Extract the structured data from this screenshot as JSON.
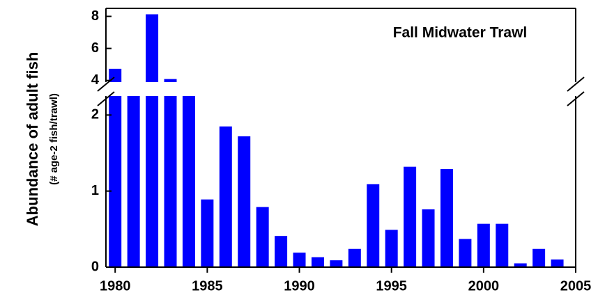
{
  "chart_data": {
    "type": "bar",
    "annotation": "Fall Midwater Trawl",
    "y_label": "Abundance of adult fish",
    "y_sublabel": "(# age-2 fish/trawl)",
    "color": "#0000ff",
    "x": [
      1980,
      1981,
      1982,
      1983,
      1984,
      1985,
      1986,
      1987,
      1988,
      1989,
      1990,
      1991,
      1992,
      1993,
      1994,
      1995,
      1996,
      1997,
      1998,
      1999,
      2000,
      2001,
      2002,
      2003,
      2004
    ],
    "values": [
      4.73,
      3,
      8.13,
      4.09,
      3,
      0.89,
      1.85,
      1.72,
      0.79,
      0.41,
      0.19,
      0.13,
      0.09,
      0.24,
      1.09,
      0.49,
      1.32,
      0.76,
      1.29,
      0.37,
      0.57,
      0.57,
      0.05,
      0.24,
      0.1
    ],
    "xlim": [
      1979.5,
      2005
    ],
    "xticks": [
      1980,
      1985,
      1990,
      1995,
      2000,
      2005
    ],
    "segments": [
      {
        "ylim": [
          0,
          2.25
        ],
        "yticks": [
          0,
          1,
          2
        ]
      },
      {
        "ylim": [
          3.9,
          8.5
        ],
        "yticks": [
          4,
          6,
          8
        ]
      }
    ]
  }
}
